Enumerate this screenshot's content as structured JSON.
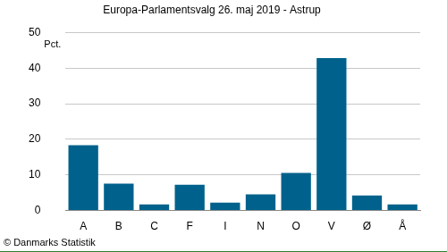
{
  "chart_data": {
    "type": "bar",
    "title": "Europa-Parlamentsvalg 26. maj 2019 - Astrup",
    "ylabel": "Pct.",
    "source": "© Danmarks Statistik",
    "categories": [
      "A",
      "B",
      "C",
      "F",
      "I",
      "N",
      "O",
      "V",
      "Ø",
      "Å"
    ],
    "values": [
      18.3,
      7.5,
      1.7,
      7.2,
      2.2,
      4.5,
      10.5,
      42.8,
      4.2,
      1.7
    ],
    "color": "#00628c",
    "ylim": [
      0,
      50
    ],
    "yticks": [
      0,
      10,
      20,
      30,
      40,
      50
    ],
    "grid": true
  }
}
